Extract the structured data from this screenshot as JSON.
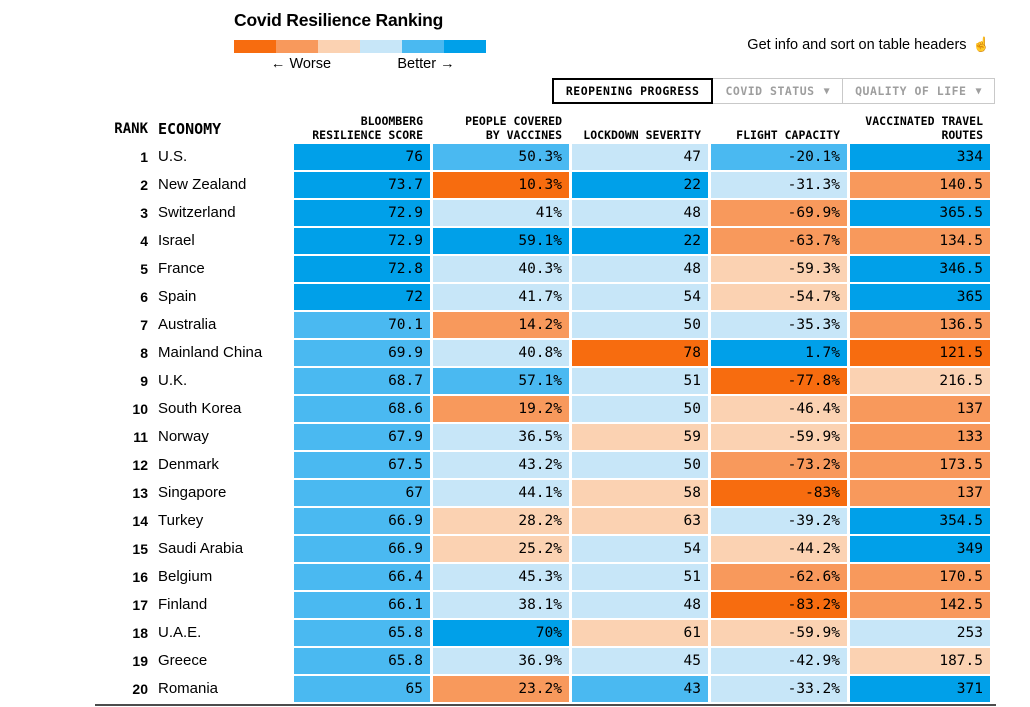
{
  "page": {
    "title": "Covid Resilience Ranking",
    "info_text": "Get info and sort on table headers",
    "info_icon": "pointer-hand-icon",
    "info_icon_glyph": "☝",
    "legend": {
      "worse_label": "← Worse",
      "better_label": "Better →",
      "colors": [
        "#f76c0f",
        "#f8995c",
        "#fbd2b2",
        "#c7e6f8",
        "#4ab9f1",
        "#00a0e9"
      ]
    }
  },
  "tabs": [
    {
      "label": "REOPENING PROGRESS",
      "active": true
    },
    {
      "label": "COVID STATUS",
      "active": false,
      "arrow": "▼"
    },
    {
      "label": "QUALITY OF LIFE",
      "active": false,
      "arrow": "▼"
    }
  ],
  "palette": {
    "b3": "#00a0e9",
    "b2": "#4ab9f1",
    "b1": "#c7e6f8",
    "o1": "#fbd2b2",
    "o2": "#f8995c",
    "o3": "#f76c0f"
  },
  "table": {
    "rank_header": "RANK",
    "economy_header": "ECONOMY",
    "columns": [
      {
        "id": "score",
        "lines": [
          "BLOOMBERG",
          "RESILIENCE SCORE"
        ]
      },
      {
        "id": "vaccines",
        "lines": [
          "PEOPLE COVERED",
          "BY VACCINES"
        ]
      },
      {
        "id": "lockdown",
        "lines": [
          "",
          "LOCKDOWN SEVERITY"
        ]
      },
      {
        "id": "flight",
        "lines": [
          "",
          "FLIGHT CAPACITY"
        ]
      },
      {
        "id": "routes",
        "lines": [
          "VACCINATED TRAVEL",
          "ROUTES"
        ]
      }
    ],
    "rows": [
      {
        "rank": "1",
        "economy": "U.S.",
        "cells": [
          [
            "76",
            "b3"
          ],
          [
            "50.3%",
            "b2"
          ],
          [
            "47",
            "b1"
          ],
          [
            "-20.1%",
            "b2"
          ],
          [
            "334",
            "b3"
          ]
        ]
      },
      {
        "rank": "2",
        "economy": "New Zealand",
        "cells": [
          [
            "73.7",
            "b3"
          ],
          [
            "10.3%",
            "o3"
          ],
          [
            "22",
            "b3"
          ],
          [
            "-31.3%",
            "b1"
          ],
          [
            "140.5",
            "o2"
          ]
        ]
      },
      {
        "rank": "3",
        "economy": "Switzerland",
        "cells": [
          [
            "72.9",
            "b3"
          ],
          [
            "41%",
            "b1"
          ],
          [
            "48",
            "b1"
          ],
          [
            "-69.9%",
            "o2"
          ],
          [
            "365.5",
            "b3"
          ]
        ]
      },
      {
        "rank": "4",
        "economy": "Israel",
        "cells": [
          [
            "72.9",
            "b3"
          ],
          [
            "59.1%",
            "b3"
          ],
          [
            "22",
            "b3"
          ],
          [
            "-63.7%",
            "o2"
          ],
          [
            "134.5",
            "o2"
          ]
        ]
      },
      {
        "rank": "5",
        "economy": "France",
        "cells": [
          [
            "72.8",
            "b3"
          ],
          [
            "40.3%",
            "b1"
          ],
          [
            "48",
            "b1"
          ],
          [
            "-59.3%",
            "o1"
          ],
          [
            "346.5",
            "b3"
          ]
        ]
      },
      {
        "rank": "6",
        "economy": "Spain",
        "cells": [
          [
            "72",
            "b3"
          ],
          [
            "41.7%",
            "b1"
          ],
          [
            "54",
            "b1"
          ],
          [
            "-54.7%",
            "o1"
          ],
          [
            "365",
            "b3"
          ]
        ]
      },
      {
        "rank": "7",
        "economy": "Australia",
        "cells": [
          [
            "70.1",
            "b2"
          ],
          [
            "14.2%",
            "o2"
          ],
          [
            "50",
            "b1"
          ],
          [
            "-35.3%",
            "b1"
          ],
          [
            "136.5",
            "o2"
          ]
        ]
      },
      {
        "rank": "8",
        "economy": "Mainland China",
        "cells": [
          [
            "69.9",
            "b2"
          ],
          [
            "40.8%",
            "b1"
          ],
          [
            "78",
            "o3"
          ],
          [
            "1.7%",
            "b3"
          ],
          [
            "121.5",
            "o3"
          ]
        ]
      },
      {
        "rank": "9",
        "economy": "U.K.",
        "cells": [
          [
            "68.7",
            "b2"
          ],
          [
            "57.1%",
            "b2"
          ],
          [
            "51",
            "b1"
          ],
          [
            "-77.8%",
            "o3"
          ],
          [
            "216.5",
            "o1"
          ]
        ]
      },
      {
        "rank": "10",
        "economy": "South Korea",
        "cells": [
          [
            "68.6",
            "b2"
          ],
          [
            "19.2%",
            "o2"
          ],
          [
            "50",
            "b1"
          ],
          [
            "-46.4%",
            "o1"
          ],
          [
            "137",
            "o2"
          ]
        ]
      },
      {
        "rank": "11",
        "economy": "Norway",
        "cells": [
          [
            "67.9",
            "b2"
          ],
          [
            "36.5%",
            "b1"
          ],
          [
            "59",
            "o1"
          ],
          [
            "-59.9%",
            "o1"
          ],
          [
            "133",
            "o2"
          ]
        ]
      },
      {
        "rank": "12",
        "economy": "Denmark",
        "cells": [
          [
            "67.5",
            "b2"
          ],
          [
            "43.2%",
            "b1"
          ],
          [
            "50",
            "b1"
          ],
          [
            "-73.2%",
            "o2"
          ],
          [
            "173.5",
            "o2"
          ]
        ]
      },
      {
        "rank": "13",
        "economy": "Singapore",
        "cells": [
          [
            "67",
            "b2"
          ],
          [
            "44.1%",
            "b1"
          ],
          [
            "58",
            "o1"
          ],
          [
            "-83%",
            "o3"
          ],
          [
            "137",
            "o2"
          ]
        ]
      },
      {
        "rank": "14",
        "economy": "Turkey",
        "cells": [
          [
            "66.9",
            "b2"
          ],
          [
            "28.2%",
            "o1"
          ],
          [
            "63",
            "o1"
          ],
          [
            "-39.2%",
            "b1"
          ],
          [
            "354.5",
            "b3"
          ]
        ]
      },
      {
        "rank": "15",
        "economy": "Saudi Arabia",
        "cells": [
          [
            "66.9",
            "b2"
          ],
          [
            "25.2%",
            "o1"
          ],
          [
            "54",
            "b1"
          ],
          [
            "-44.2%",
            "o1"
          ],
          [
            "349",
            "b3"
          ]
        ]
      },
      {
        "rank": "16",
        "economy": "Belgium",
        "cells": [
          [
            "66.4",
            "b2"
          ],
          [
            "45.3%",
            "b1"
          ],
          [
            "51",
            "b1"
          ],
          [
            "-62.6%",
            "o2"
          ],
          [
            "170.5",
            "o2"
          ]
        ]
      },
      {
        "rank": "17",
        "economy": "Finland",
        "cells": [
          [
            "66.1",
            "b2"
          ],
          [
            "38.1%",
            "b1"
          ],
          [
            "48",
            "b1"
          ],
          [
            "-83.2%",
            "o3"
          ],
          [
            "142.5",
            "o2"
          ]
        ]
      },
      {
        "rank": "18",
        "economy": "U.A.E.",
        "cells": [
          [
            "65.8",
            "b2"
          ],
          [
            "70%",
            "b3"
          ],
          [
            "61",
            "o1"
          ],
          [
            "-59.9%",
            "o1"
          ],
          [
            "253",
            "b1"
          ]
        ]
      },
      {
        "rank": "19",
        "economy": "Greece",
        "cells": [
          [
            "65.8",
            "b2"
          ],
          [
            "36.9%",
            "b1"
          ],
          [
            "45",
            "b1"
          ],
          [
            "-42.9%",
            "b1"
          ],
          [
            "187.5",
            "o1"
          ]
        ]
      },
      {
        "rank": "20",
        "economy": "Romania",
        "cells": [
          [
            "65",
            "b2"
          ],
          [
            "23.2%",
            "o2"
          ],
          [
            "43",
            "b2"
          ],
          [
            "-33.2%",
            "b1"
          ],
          [
            "371",
            "b3"
          ]
        ]
      }
    ]
  },
  "chart_data": {
    "type": "heatmap",
    "title": "Covid Resilience Ranking",
    "legend": {
      "left": "Worse",
      "right": "Better",
      "position": "top",
      "scale_worse_to_better": [
        "#f76c0f",
        "#f8995c",
        "#fbd2b2",
        "#c7e6f8",
        "#4ab9f1",
        "#00a0e9"
      ]
    },
    "columns": [
      "Rank",
      "Economy",
      "Bloomberg Resilience Score",
      "People Covered by Vaccines (%)",
      "Lockdown Severity",
      "Flight Capacity (%)",
      "Vaccinated Travel Routes"
    ],
    "rows": [
      [
        1,
        "U.S.",
        76,
        50.3,
        47,
        -20.1,
        334
      ],
      [
        2,
        "New Zealand",
        73.7,
        10.3,
        22,
        -31.3,
        140.5
      ],
      [
        3,
        "Switzerland",
        72.9,
        41,
        48,
        -69.9,
        365.5
      ],
      [
        4,
        "Israel",
        72.9,
        59.1,
        22,
        -63.7,
        134.5
      ],
      [
        5,
        "France",
        72.8,
        40.3,
        48,
        -59.3,
        346.5
      ],
      [
        6,
        "Spain",
        72,
        41.7,
        54,
        -54.7,
        365
      ],
      [
        7,
        "Australia",
        70.1,
        14.2,
        50,
        -35.3,
        136.5
      ],
      [
        8,
        "Mainland China",
        69.9,
        40.8,
        78,
        1.7,
        121.5
      ],
      [
        9,
        "U.K.",
        68.7,
        57.1,
        51,
        -77.8,
        216.5
      ],
      [
        10,
        "South Korea",
        68.6,
        19.2,
        50,
        -46.4,
        137
      ],
      [
        11,
        "Norway",
        67.9,
        36.5,
        59,
        -59.9,
        133
      ],
      [
        12,
        "Denmark",
        67.5,
        43.2,
        50,
        -73.2,
        173.5
      ],
      [
        13,
        "Singapore",
        67,
        44.1,
        58,
        -83,
        137
      ],
      [
        14,
        "Turkey",
        66.9,
        28.2,
        63,
        -39.2,
        354.5
      ],
      [
        15,
        "Saudi Arabia",
        66.9,
        25.2,
        54,
        -44.2,
        349
      ],
      [
        16,
        "Belgium",
        66.4,
        45.3,
        51,
        -62.6,
        170.5
      ],
      [
        17,
        "Finland",
        66.1,
        38.1,
        48,
        -83.2,
        142.5
      ],
      [
        18,
        "U.A.E.",
        65.8,
        70,
        61,
        -59.9,
        253
      ],
      [
        19,
        "Greece",
        65.8,
        36.9,
        45,
        -42.9,
        187.5
      ],
      [
        20,
        "Romania",
        65,
        23.2,
        43,
        -33.2,
        371
      ]
    ]
  }
}
